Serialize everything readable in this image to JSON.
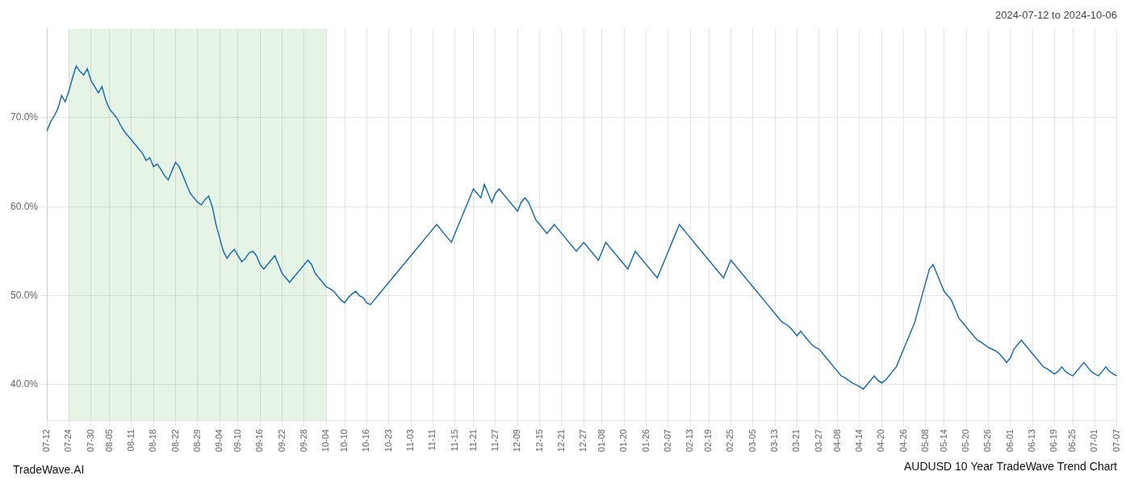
{
  "chart_data": {
    "type": "line",
    "title": "AUDUSD 10 Year TradeWave Trend Chart",
    "subtitle": "2024-07-12 to 2024-10-06",
    "annotations": [
      "TradeWave.AI"
    ],
    "color": "#1a6eb5",
    "grid": true,
    "shade": {
      "start": "07-24",
      "end": "10-04",
      "color": "#d6ecd6"
    },
    "ylim": [
      36,
      80
    ],
    "yticks": [
      {
        "value": 40,
        "label": "40.0%"
      },
      {
        "value": 50,
        "label": "50.0%"
      },
      {
        "value": 60,
        "label": "60.0%"
      },
      {
        "value": 70,
        "label": "70.0%"
      }
    ],
    "categories": [
      "07-12",
      null,
      null,
      null,
      null,
      null,
      "07-24",
      null,
      null,
      null,
      null,
      null,
      "07-30",
      null,
      null,
      null,
      null,
      "08-05",
      null,
      null,
      null,
      null,
      null,
      "08-11",
      null,
      null,
      null,
      null,
      null,
      "08-18",
      null,
      null,
      null,
      null,
      null,
      "08-22",
      null,
      null,
      null,
      null,
      null,
      "08-29",
      null,
      null,
      null,
      null,
      null,
      "09-04",
      null,
      null,
      null,
      null,
      "09-10",
      null,
      null,
      null,
      null,
      null,
      "09-16",
      null,
      null,
      null,
      null,
      null,
      "09-22",
      null,
      null,
      null,
      null,
      null,
      "09-28",
      null,
      null,
      null,
      null,
      null,
      "10-04",
      null,
      null,
      null,
      null,
      "10-10",
      null,
      null,
      null,
      null,
      null,
      "10-16",
      null,
      null,
      null,
      null,
      null,
      "10-23",
      null,
      null,
      null,
      null,
      null,
      "11-03",
      null,
      null,
      null,
      null,
      null,
      "11-11",
      null,
      null,
      null,
      null,
      null,
      "11-15",
      null,
      null,
      null,
      null,
      "11-21",
      null,
      null,
      null,
      null,
      null,
      "11-27",
      null,
      null,
      null,
      null,
      null,
      "12-09",
      null,
      null,
      null,
      null,
      null,
      "12-15",
      null,
      null,
      null,
      null,
      null,
      "12-21",
      null,
      null,
      null,
      null,
      null,
      "12-27",
      null,
      null,
      null,
      null,
      "01-08",
      null,
      null,
      null,
      null,
      null,
      "01-20",
      null,
      null,
      null,
      null,
      null,
      "01-26",
      null,
      null,
      null,
      null,
      null,
      "02-07",
      null,
      null,
      null,
      null,
      null,
      "02-13",
      null,
      null,
      null,
      null,
      "02-19",
      null,
      null,
      null,
      null,
      null,
      "02-25",
      null,
      null,
      null,
      null,
      null,
      "03-05",
      null,
      null,
      null,
      null,
      null,
      "03-13",
      null,
      null,
      null,
      null,
      null,
      "03-21",
      null,
      null,
      null,
      null,
      null,
      "03-27",
      null,
      null,
      null,
      null,
      "04-08",
      null,
      null,
      null,
      null,
      null,
      "04-14",
      null,
      null,
      null,
      null,
      null,
      "04-20",
      null,
      null,
      null,
      null,
      null,
      "04-26",
      null,
      null,
      null,
      null,
      null,
      "05-08",
      null,
      null,
      null,
      null,
      "05-14",
      null,
      null,
      null,
      null,
      null,
      "05-20",
      null,
      null,
      null,
      null,
      null,
      "05-26",
      null,
      null,
      null,
      null,
      null,
      "06-01",
      null,
      null,
      null,
      null,
      null,
      "06-13",
      null,
      null,
      null,
      null,
      null,
      "06-19",
      null,
      null,
      null,
      null,
      "06-25",
      null,
      null,
      null,
      null,
      null,
      "07-01",
      null,
      null,
      null,
      null,
      null,
      "07-07"
    ],
    "values": [
      68.5,
      69.5,
      70.2,
      71.0,
      72.5,
      71.8,
      73.0,
      74.5,
      75.8,
      75.2,
      74.8,
      75.5,
      74.2,
      73.5,
      72.8,
      73.5,
      72.0,
      71.0,
      70.5,
      70.0,
      69.2,
      68.5,
      68.0,
      67.5,
      67.0,
      66.5,
      66.0,
      65.2,
      65.5,
      64.5,
      64.8,
      64.2,
      63.5,
      63.0,
      64.0,
      65.0,
      64.5,
      63.5,
      62.5,
      61.5,
      61.0,
      60.5,
      60.2,
      60.8,
      61.2,
      60.0,
      58.0,
      56.5,
      55.0,
      54.2,
      54.8,
      55.2,
      54.5,
      53.8,
      54.2,
      54.8,
      55.0,
      54.5,
      53.5,
      53.0,
      53.5,
      54.0,
      54.5,
      53.5,
      52.5,
      52.0,
      51.5,
      52.0,
      52.5,
      53.0,
      53.5,
      54.0,
      53.5,
      52.5,
      52.0,
      51.5,
      51.0,
      50.8,
      50.5,
      50.0,
      49.5,
      49.2,
      49.8,
      50.2,
      50.5,
      50.0,
      49.8,
      49.2,
      49.0,
      49.5,
      50.0,
      50.5,
      51.0,
      51.5,
      52.0,
      52.5,
      53.0,
      53.5,
      54.0,
      54.5,
      55.0,
      55.5,
      56.0,
      56.5,
      57.0,
      57.5,
      58.0,
      57.5,
      57.0,
      56.5,
      56.0,
      57.0,
      58.0,
      59.0,
      60.0,
      61.0,
      62.0,
      61.5,
      61.0,
      62.5,
      61.5,
      60.5,
      61.5,
      62.0,
      61.5,
      61.0,
      60.5,
      60.0,
      59.5,
      60.5,
      61.0,
      60.5,
      59.5,
      58.5,
      58.0,
      57.5,
      57.0,
      57.5,
      58.0,
      57.5,
      57.0,
      56.5,
      56.0,
      55.5,
      55.0,
      55.5,
      56.0,
      55.5,
      55.0,
      54.5,
      54.0,
      55.0,
      56.0,
      55.5,
      55.0,
      54.5,
      54.0,
      53.5,
      53.0,
      54.0,
      55.0,
      54.5,
      54.0,
      53.5,
      53.0,
      52.5,
      52.0,
      53.0,
      54.0,
      55.0,
      56.0,
      57.0,
      58.0,
      57.5,
      57.0,
      56.5,
      56.0,
      55.5,
      55.0,
      54.5,
      54.0,
      53.5,
      53.0,
      52.5,
      52.0,
      53.0,
      54.0,
      53.5,
      53.0,
      52.5,
      52.0,
      51.5,
      51.0,
      50.5,
      50.0,
      49.5,
      49.0,
      48.5,
      48.0,
      47.5,
      47.0,
      46.8,
      46.5,
      46.0,
      45.5,
      46.0,
      45.5,
      45.0,
      44.5,
      44.2,
      44.0,
      43.5,
      43.0,
      42.5,
      42.0,
      41.5,
      41.0,
      40.8,
      40.5,
      40.2,
      40.0,
      39.8,
      39.5,
      40.0,
      40.5,
      41.0,
      40.5,
      40.2,
      40.5,
      41.0,
      41.5,
      42.0,
      43.0,
      44.0,
      45.0,
      46.0,
      47.0,
      48.5,
      50.0,
      51.5,
      53.0,
      53.5,
      52.5,
      51.5,
      50.5,
      50.0,
      49.5,
      48.5,
      47.5,
      47.0,
      46.5,
      46.0,
      45.5,
      45.0,
      44.8,
      44.5,
      44.2,
      44.0,
      43.8,
      43.5,
      43.0,
      42.5,
      43.0,
      44.0,
      44.5,
      45.0,
      44.5,
      44.0,
      43.5,
      43.0,
      42.5,
      42.0,
      41.8,
      41.5,
      41.2,
      41.5,
      42.0,
      41.5,
      41.2,
      41.0,
      41.5,
      42.0,
      42.5,
      42.0,
      41.5,
      41.2,
      41.0,
      41.5,
      42.0,
      41.5,
      41.2,
      41.0
    ]
  }
}
